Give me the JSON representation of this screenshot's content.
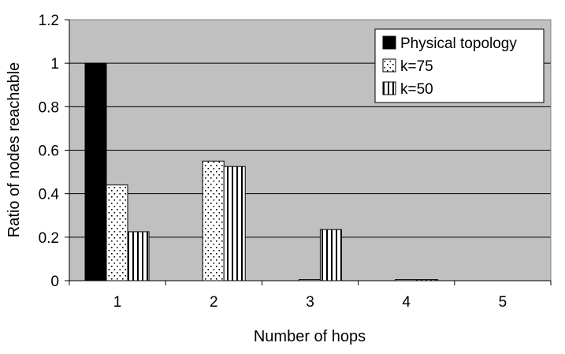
{
  "chart_data": {
    "type": "bar",
    "title": "",
    "xlabel": "Number of hops",
    "ylabel": "Ratio of nodes reachable",
    "categories": [
      "1",
      "2",
      "3",
      "4",
      "5"
    ],
    "ylim": [
      0,
      1.2
    ],
    "yticks": [
      "0",
      "0.2",
      "0.4",
      "0.6",
      "0.8",
      "1",
      "1.2"
    ],
    "grid": true,
    "legend_position": "top-right",
    "plot_background": "#c0c0c0",
    "series": [
      {
        "name": "Physical topology",
        "pattern": "solid-black",
        "values": [
          1.0,
          0,
          0,
          0,
          0
        ]
      },
      {
        "name": "k=75",
        "pattern": "dots",
        "values": [
          0.44,
          0.55,
          0.005,
          0.005,
          0
        ]
      },
      {
        "name": "k=50",
        "pattern": "vertical-stripes",
        "values": [
          0.225,
          0.525,
          0.235,
          0.005,
          0
        ]
      }
    ]
  }
}
